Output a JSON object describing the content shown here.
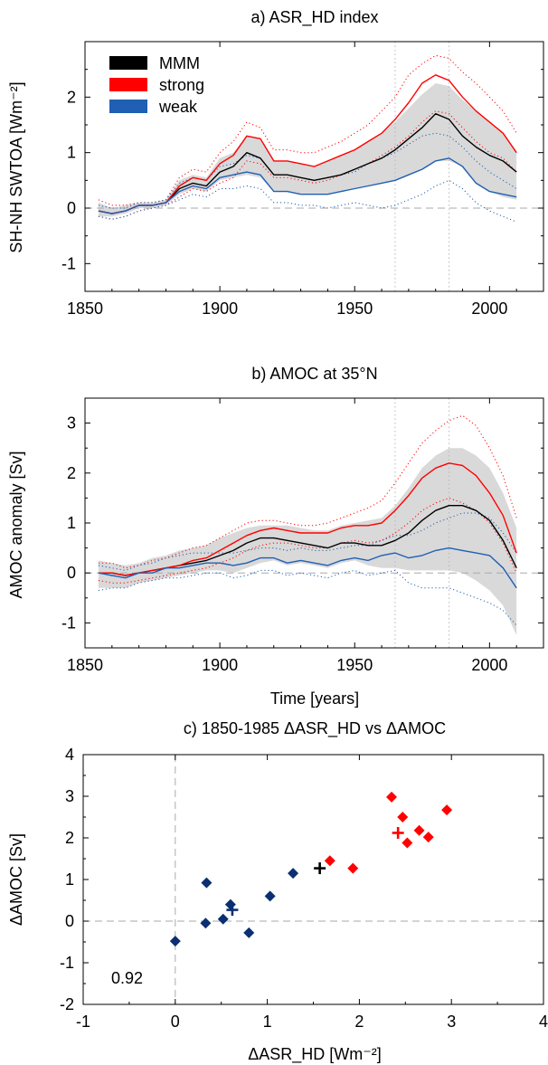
{
  "chart_data": [
    {
      "type": "line",
      "title": "a) ASR_HD index",
      "ylabel": "SH-NH SWTOA [Wm⁻²]",
      "xlabel": "",
      "xlim": [
        1850,
        2020
      ],
      "ylim": [
        -1.5,
        3.0
      ],
      "xticks": [
        "1850",
        "1900",
        "1950",
        "2000"
      ],
      "yticks": [
        "-1",
        "0",
        "1",
        "2"
      ],
      "vlines": [
        1965,
        1985
      ],
      "hline": 0,
      "legend": {
        "placement": "top-left",
        "entries": [
          "MMM",
          "strong",
          "weak"
        ]
      },
      "x": [
        1855,
        1860,
        1865,
        1870,
        1875,
        1880,
        1885,
        1890,
        1895,
        1900,
        1905,
        1910,
        1915,
        1920,
        1925,
        1930,
        1935,
        1940,
        1945,
        1950,
        1955,
        1960,
        1965,
        1970,
        1975,
        1980,
        1985,
        1990,
        1995,
        2000,
        2005,
        2010
      ],
      "series": [
        {
          "name": "MMM",
          "color": "#000000",
          "style": "solid",
          "values": [
            -0.05,
            -0.1,
            -0.05,
            0.05,
            0.05,
            0.1,
            0.35,
            0.45,
            0.4,
            0.65,
            0.75,
            1.0,
            0.9,
            0.6,
            0.6,
            0.55,
            0.5,
            0.55,
            0.6,
            0.7,
            0.8,
            0.9,
            1.05,
            1.25,
            1.45,
            1.7,
            1.6,
            1.3,
            1.1,
            0.95,
            0.85,
            0.65
          ]
        },
        {
          "name": "strong",
          "color": "#ff0000",
          "style": "solid",
          "values": [
            -0.05,
            -0.1,
            -0.05,
            0.05,
            0.05,
            0.1,
            0.4,
            0.55,
            0.5,
            0.8,
            0.95,
            1.3,
            1.25,
            0.85,
            0.85,
            0.8,
            0.75,
            0.85,
            0.95,
            1.05,
            1.2,
            1.35,
            1.6,
            1.9,
            2.25,
            2.4,
            2.3,
            2.0,
            1.75,
            1.55,
            1.35,
            1.0
          ]
        },
        {
          "name": "weak",
          "color": "#1f5fb4",
          "style": "solid",
          "values": [
            -0.05,
            -0.1,
            -0.05,
            0.05,
            0.05,
            0.1,
            0.3,
            0.4,
            0.35,
            0.55,
            0.6,
            0.65,
            0.6,
            0.3,
            0.3,
            0.25,
            0.25,
            0.25,
            0.3,
            0.35,
            0.4,
            0.45,
            0.5,
            0.6,
            0.7,
            0.85,
            0.9,
            0.75,
            0.45,
            0.3,
            0.25,
            0.2
          ]
        },
        {
          "name": "strong-max",
          "color": "#ff0000",
          "style": "dotted",
          "values": [
            0.15,
            0.05,
            0.05,
            0.1,
            0.1,
            0.15,
            0.55,
            0.7,
            0.65,
            1.0,
            1.2,
            1.55,
            1.45,
            1.05,
            1.05,
            1.0,
            1.0,
            1.1,
            1.2,
            1.35,
            1.5,
            1.75,
            2.0,
            2.4,
            2.6,
            2.75,
            2.7,
            2.45,
            2.25,
            2.0,
            1.75,
            1.35
          ]
        },
        {
          "name": "strong-min",
          "color": "#ff0000",
          "style": "dotted",
          "values": [
            -0.15,
            -0.2,
            -0.15,
            -0.05,
            0.0,
            0.05,
            0.2,
            0.35,
            0.3,
            0.45,
            0.55,
            0.85,
            0.8,
            0.55,
            0.55,
            0.5,
            0.45,
            0.5,
            0.6,
            0.7,
            0.8,
            0.95,
            1.1,
            1.3,
            1.55,
            1.75,
            1.7,
            1.45,
            1.2,
            1.0,
            0.9,
            0.65
          ]
        },
        {
          "name": "weak-max",
          "color": "#1f5fb4",
          "style": "dotted",
          "values": [
            0.05,
            0.0,
            0.0,
            0.1,
            0.1,
            0.15,
            0.45,
            0.55,
            0.5,
            0.75,
            0.8,
            0.95,
            0.9,
            0.6,
            0.6,
            0.55,
            0.5,
            0.55,
            0.6,
            0.65,
            0.8,
            0.9,
            1.0,
            1.15,
            1.3,
            1.35,
            1.3,
            1.1,
            0.85,
            0.65,
            0.5,
            0.35
          ]
        },
        {
          "name": "weak-min",
          "color": "#1f5fb4",
          "style": "dotted",
          "values": [
            -0.15,
            -0.2,
            -0.15,
            -0.05,
            0.0,
            0.05,
            0.15,
            0.25,
            0.2,
            0.35,
            0.35,
            0.4,
            0.35,
            0.1,
            0.1,
            0.05,
            0.05,
            0.0,
            0.05,
            0.1,
            0.05,
            0.0,
            0.05,
            0.15,
            0.25,
            0.4,
            0.5,
            0.35,
            0.1,
            -0.05,
            -0.15,
            -0.25
          ]
        }
      ],
      "band": {
        "color": "#d9d9d9",
        "upper": [
          0.1,
          0.0,
          0.05,
          0.1,
          0.1,
          0.15,
          0.5,
          0.6,
          0.55,
          0.9,
          1.0,
          1.3,
          1.25,
          0.85,
          0.85,
          0.8,
          0.75,
          0.85,
          0.95,
          1.05,
          1.2,
          1.35,
          1.55,
          1.8,
          2.05,
          2.25,
          2.2,
          1.95,
          1.75,
          1.55,
          1.35,
          1.0
        ],
        "lower": [
          -0.15,
          -0.15,
          -0.1,
          0.0,
          0.0,
          0.05,
          0.25,
          0.35,
          0.3,
          0.5,
          0.55,
          0.6,
          0.55,
          0.3,
          0.3,
          0.25,
          0.25,
          0.25,
          0.3,
          0.35,
          0.4,
          0.45,
          0.5,
          0.6,
          0.7,
          0.85,
          0.85,
          0.75,
          0.45,
          0.3,
          0.2,
          0.15
        ]
      }
    },
    {
      "type": "line",
      "title": "b) AMOC at 35°N",
      "ylabel": "AMOC anomaly [Sv]",
      "xlabel": "Time [years]",
      "xlim": [
        1850,
        2020
      ],
      "ylim": [
        -1.5,
        3.5
      ],
      "xticks": [
        "1850",
        "1900",
        "1950",
        "2000"
      ],
      "yticks": [
        "-1",
        "0",
        "1",
        "2",
        "3"
      ],
      "vlines": [
        1965,
        1985
      ],
      "hline": 0,
      "x": [
        1855,
        1860,
        1865,
        1870,
        1875,
        1880,
        1885,
        1890,
        1895,
        1900,
        1905,
        1910,
        1915,
        1920,
        1925,
        1930,
        1935,
        1940,
        1945,
        1950,
        1955,
        1960,
        1965,
        1970,
        1975,
        1980,
        1985,
        1990,
        1995,
        2000,
        2005,
        2010
      ],
      "series": [
        {
          "name": "MMM",
          "color": "#000000",
          "style": "solid",
          "values": [
            0.0,
            0.0,
            -0.05,
            0.0,
            0.05,
            0.1,
            0.15,
            0.2,
            0.25,
            0.35,
            0.45,
            0.6,
            0.7,
            0.7,
            0.65,
            0.6,
            0.55,
            0.5,
            0.6,
            0.6,
            0.55,
            0.55,
            0.65,
            0.8,
            1.05,
            1.25,
            1.35,
            1.35,
            1.25,
            1.05,
            0.65,
            0.1
          ]
        },
        {
          "name": "strong",
          "color": "#ff0000",
          "style": "solid",
          "values": [
            0.0,
            0.0,
            -0.05,
            0.0,
            0.05,
            0.1,
            0.15,
            0.25,
            0.3,
            0.45,
            0.6,
            0.75,
            0.85,
            0.9,
            0.85,
            0.8,
            0.8,
            0.8,
            0.9,
            0.95,
            0.95,
            1.0,
            1.25,
            1.55,
            1.9,
            2.1,
            2.2,
            2.15,
            1.95,
            1.6,
            1.15,
            0.4
          ]
        },
        {
          "name": "weak",
          "color": "#1f5fb4",
          "style": "solid",
          "values": [
            0.0,
            -0.05,
            -0.1,
            0.0,
            0.0,
            0.1,
            0.1,
            0.15,
            0.2,
            0.2,
            0.15,
            0.2,
            0.3,
            0.3,
            0.2,
            0.25,
            0.2,
            0.15,
            0.25,
            0.3,
            0.25,
            0.35,
            0.4,
            0.3,
            0.35,
            0.45,
            0.5,
            0.45,
            0.4,
            0.35,
            0.1,
            -0.3
          ]
        },
        {
          "name": "strong-max",
          "color": "#ff0000",
          "style": "dotted",
          "values": [
            0.2,
            0.2,
            0.1,
            0.15,
            0.25,
            0.3,
            0.4,
            0.5,
            0.55,
            0.7,
            0.85,
            1.0,
            1.05,
            1.05,
            1.0,
            0.95,
            0.95,
            1.0,
            1.1,
            1.2,
            1.3,
            1.45,
            1.8,
            2.2,
            2.6,
            2.85,
            3.05,
            3.15,
            2.95,
            2.5,
            1.95,
            1.1
          ]
        },
        {
          "name": "strong-min",
          "color": "#ff0000",
          "style": "dotted",
          "values": [
            -0.15,
            -0.2,
            -0.2,
            -0.15,
            -0.1,
            -0.05,
            0.0,
            0.05,
            0.1,
            0.2,
            0.3,
            0.45,
            0.55,
            0.6,
            0.6,
            0.55,
            0.5,
            0.5,
            0.6,
            0.65,
            0.6,
            0.65,
            0.8,
            1.0,
            1.25,
            1.4,
            1.5,
            1.4,
            1.25,
            1.0,
            0.6,
            0.0
          ]
        },
        {
          "name": "weak-max",
          "color": "#1f5fb4",
          "style": "dotted",
          "values": [
            0.15,
            0.1,
            0.05,
            0.15,
            0.2,
            0.3,
            0.35,
            0.4,
            0.4,
            0.4,
            0.4,
            0.45,
            0.5,
            0.5,
            0.45,
            0.5,
            0.45,
            0.45,
            0.5,
            0.55,
            0.55,
            0.65,
            0.75,
            0.75,
            0.85,
            1.0,
            1.1,
            1.2,
            1.2,
            1.1,
            0.8,
            0.4
          ]
        },
        {
          "name": "weak-min",
          "color": "#1f5fb4",
          "style": "dotted",
          "values": [
            -0.35,
            -0.3,
            -0.3,
            -0.2,
            -0.15,
            -0.1,
            -0.1,
            -0.05,
            0.0,
            0.0,
            -0.1,
            -0.05,
            0.05,
            0.05,
            -0.05,
            0.0,
            -0.05,
            -0.1,
            0.0,
            0.05,
            -0.05,
            0.0,
            0.05,
            -0.2,
            -0.3,
            -0.3,
            -0.3,
            -0.4,
            -0.5,
            -0.6,
            -0.75,
            -1.05
          ]
        }
      ],
      "band": {
        "color": "#d9d9d9",
        "upper": [
          0.25,
          0.2,
          0.15,
          0.2,
          0.3,
          0.35,
          0.45,
          0.5,
          0.55,
          0.7,
          0.8,
          0.9,
          0.95,
          0.95,
          0.95,
          0.9,
          0.85,
          0.85,
          0.95,
          1.0,
          1.05,
          1.1,
          1.35,
          1.7,
          2.1,
          2.35,
          2.5,
          2.5,
          2.35,
          2.1,
          1.6,
          0.9
        ],
        "lower": [
          -0.3,
          -0.3,
          -0.3,
          -0.2,
          -0.15,
          -0.1,
          -0.05,
          0.0,
          0.05,
          0.05,
          0.0,
          0.1,
          0.2,
          0.25,
          0.15,
          0.2,
          0.15,
          0.1,
          0.2,
          0.25,
          0.15,
          0.1,
          0.1,
          0.05,
          0.05,
          0.05,
          0.05,
          0.0,
          -0.15,
          -0.35,
          -0.65,
          -1.25
        ]
      }
    },
    {
      "type": "scatter",
      "title": "c) 1850-1985  ΔASR_HD vs ΔAMOC",
      "xlabel": "ΔASR_HD [Wm⁻²]",
      "ylabel": "ΔAMOC [Sv]",
      "xlim": [
        -1,
        4
      ],
      "ylim": [
        -2,
        4
      ],
      "xticks": [
        "-1",
        "0",
        "1",
        "2",
        "3",
        "4"
      ],
      "yticks": [
        "-2",
        "-1",
        "0",
        "1",
        "2",
        "3",
        "4"
      ],
      "vline": 0,
      "hline": 0,
      "annotation": "0.92",
      "series": [
        {
          "name": "weak",
          "color": "#0c2f72",
          "marker": "diamond",
          "points": [
            [
              0.0,
              -0.48
            ],
            [
              0.33,
              -0.05
            ],
            [
              0.34,
              0.92
            ],
            [
              0.52,
              0.05
            ],
            [
              0.6,
              0.4
            ],
            [
              0.8,
              -0.28
            ],
            [
              1.03,
              0.6
            ],
            [
              1.28,
              1.15
            ]
          ]
        },
        {
          "name": "strong",
          "color": "#ff0000",
          "marker": "diamond",
          "points": [
            [
              1.68,
              1.45
            ],
            [
              1.93,
              1.27
            ],
            [
              2.35,
              2.98
            ],
            [
              2.47,
              2.5
            ],
            [
              2.52,
              1.88
            ],
            [
              2.65,
              2.18
            ],
            [
              2.75,
              2.02
            ],
            [
              2.95,
              2.67
            ]
          ]
        },
        {
          "name": "weak-mean",
          "color": "#0c2f72",
          "marker": "plus",
          "points": [
            [
              0.62,
              0.27
            ]
          ]
        },
        {
          "name": "MMM-mean",
          "color": "#000000",
          "marker": "plus",
          "points": [
            [
              1.57,
              1.27
            ]
          ]
        },
        {
          "name": "strong-mean",
          "color": "#ff0000",
          "marker": "plus",
          "points": [
            [
              2.42,
              2.12
            ]
          ]
        }
      ]
    }
  ]
}
